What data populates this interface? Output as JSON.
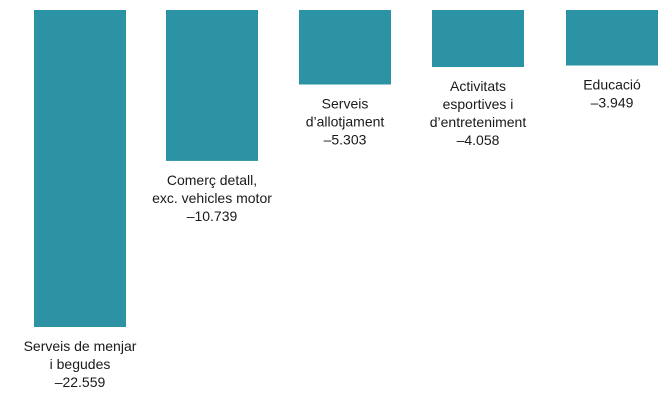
{
  "chart_data": {
    "type": "bar",
    "orientation": "vertical-downward",
    "categories": [
      [
        "Serveis de menjar",
        "i begudes"
      ],
      [
        "Comerç detall,",
        "exc. vehicles motor"
      ],
      [
        "Serveis",
        "d’allotjament"
      ],
      [
        "Activitats",
        "esportives i",
        "d’entreteniment"
      ],
      [
        "Educació"
      ]
    ],
    "value_labels": [
      "–22.559",
      "–10.739",
      "–5.303",
      "–4.058",
      "–3.949"
    ],
    "values": [
      -22559,
      -10739,
      -5303,
      -4058,
      -3949
    ],
    "title": "",
    "xlabel": "",
    "ylabel": "",
    "ylim": [
      -22559,
      0
    ],
    "grid": false,
    "legend": "none",
    "bar_color": "#2b93a3",
    "label_color": "#1a1a1a"
  }
}
